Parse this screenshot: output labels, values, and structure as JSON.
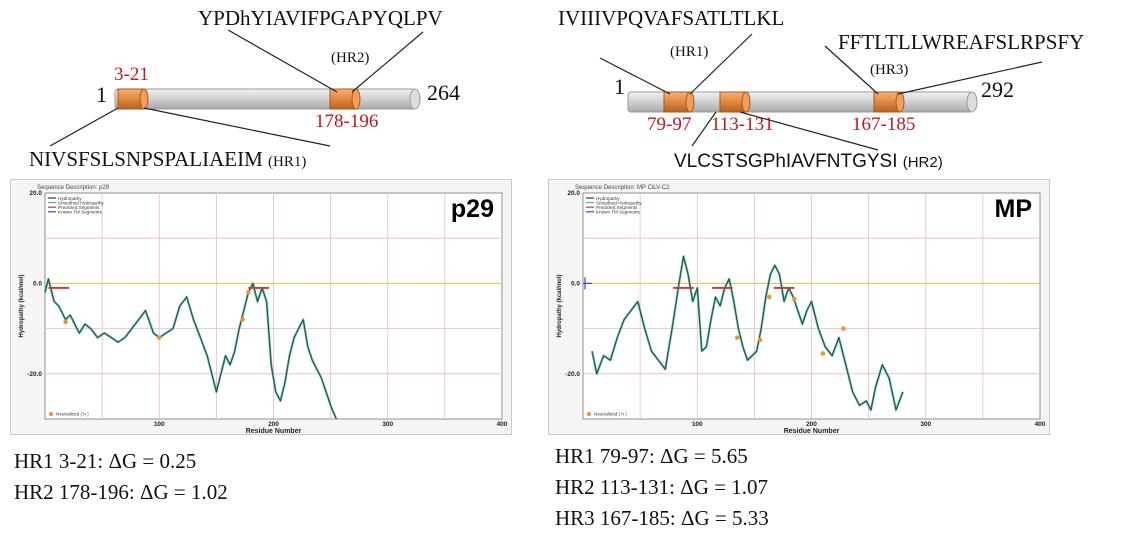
{
  "left_schematic": {
    "start": "1",
    "end": "264",
    "hr1": {
      "range": "3-21",
      "sequence": "NIVSFSLSNPSPALIAEIM",
      "label": "(HR1)"
    },
    "hr2": {
      "range": "178-196",
      "sequence": "YPDhYIAVIFPGAPYQLPV",
      "label": "(HR2)"
    }
  },
  "right_schematic": {
    "start": "1",
    "end": "292",
    "hr1": {
      "range": "79-97",
      "sequence": "IVIIIVPQVAFSATLTLKL",
      "label": "(HR1)"
    },
    "hr2": {
      "range": "113-131",
      "sequence": "VLCSTSGPhIAVFNTGYSI",
      "label": "(HR2)"
    },
    "hr3": {
      "range": "167-185",
      "sequence": "FFTLTLLWREAFSLRPSFY",
      "label": "(HR3)"
    }
  },
  "colors": {
    "hydropathy": "#2e3b33",
    "smoothed": "#49b7a8",
    "predicted": "#e03030",
    "known": "#3a3aff",
    "zero_line": "#e8c23a",
    "grid": "#f1b8b8",
    "neutralized": "#f5922a",
    "segment": "#e0873e"
  },
  "chart_data": [
    {
      "type": "line",
      "panel_label": "p29",
      "header": "Sequence Description: p29",
      "xlabel": "Residue Number",
      "ylabel": "Hydropathy (kcal/mol)",
      "xlim": [
        0,
        400
      ],
      "ylim": [
        -30,
        20
      ],
      "x_ticks": [
        "100",
        "200",
        "300",
        "400"
      ],
      "y_ticks": [
        "20.0",
        "0.0",
        "-20.0"
      ],
      "legend": [
        "Hydropathy",
        "Smoothed Hydropathy",
        "Predicted Segments",
        "Known TM Segments"
      ],
      "neutralized_label": "Neutralized ( h )",
      "series": [
        {
          "name": "Hydropathy",
          "x": [
            0,
            3,
            8,
            12,
            18,
            22,
            26,
            30,
            35,
            40,
            46,
            52,
            58,
            64,
            70,
            76,
            82,
            88,
            95,
            100,
            106,
            112,
            118,
            124,
            130,
            136,
            142,
            146,
            150,
            154,
            158,
            162,
            166,
            170,
            174,
            178,
            182,
            186,
            190,
            194,
            198,
            202,
            206,
            210,
            214,
            218,
            222,
            226,
            230,
            234,
            238,
            242,
            246,
            250,
            255
          ],
          "y": [
            -2,
            1,
            -4,
            -5,
            -8,
            -7,
            -9,
            -11,
            -9,
            -10,
            -12,
            -11,
            -12,
            -13,
            -12,
            -10,
            -8,
            -6,
            -11,
            -12,
            -11,
            -10,
            -5,
            -3,
            -8,
            -12,
            -16,
            -20,
            -24,
            -20,
            -16,
            -18,
            -15,
            -10,
            -6,
            -2,
            0,
            -4,
            -1,
            -4,
            -18,
            -24,
            -26,
            -22,
            -16,
            -12,
            -10,
            -8,
            -14,
            -17,
            -19,
            -21,
            -24,
            -27,
            -30
          ]
        }
      ],
      "predicted_segments": [
        [
          3,
          21
        ],
        [
          178,
          196
        ]
      ],
      "neutralized_points": [
        {
          "x": 18,
          "y": -8.5
        },
        {
          "x": 100,
          "y": -12
        },
        {
          "x": 173,
          "y": -8
        },
        {
          "x": 178,
          "y": -2
        }
      ]
    },
    {
      "type": "line",
      "panel_label": "MP",
      "header": "Sequence Description: MP CiLV-C2",
      "xlabel": "Residue Number",
      "ylabel": "Hydropathy (kcal/mol)",
      "xlim": [
        0,
        400
      ],
      "ylim": [
        -30,
        20
      ],
      "x_ticks": [
        "100",
        "200",
        "300",
        "400"
      ],
      "y_ticks": [
        "20.0",
        "0.0",
        "-20.0"
      ],
      "legend": [
        "Hydropathy",
        "Smoothed Hydropathy",
        "Predicted Segments",
        "Known TM Segments"
      ],
      "neutralized_label": "Neutralized ( h )",
      "series": [
        {
          "name": "Hydropathy",
          "x": [
            8,
            12,
            18,
            24,
            30,
            36,
            42,
            48,
            54,
            60,
            66,
            72,
            78,
            84,
            88,
            92,
            96,
            100,
            104,
            108,
            112,
            116,
            120,
            124,
            128,
            132,
            136,
            140,
            144,
            148,
            152,
            156,
            160,
            164,
            168,
            172,
            176,
            180,
            184,
            188,
            192,
            196,
            200,
            206,
            212,
            218,
            224,
            230,
            236,
            242,
            248,
            252,
            256,
            262,
            268,
            274,
            280
          ],
          "y": [
            -15,
            -20,
            -16,
            -17,
            -12,
            -8,
            -6,
            -4,
            -10,
            -15,
            -17,
            -19,
            -10,
            0,
            6,
            2,
            -4,
            -1,
            -15,
            -14,
            -8,
            -3,
            -5,
            -1,
            1,
            -4,
            -10,
            -14,
            -17,
            -16,
            -15,
            -10,
            -3,
            2,
            4,
            2,
            -4,
            -1,
            -3,
            -6,
            -9,
            -6,
            -4,
            -10,
            -14,
            -16,
            -12,
            -18,
            -24,
            -27,
            -26,
            -28,
            -23,
            -18,
            -21,
            -28,
            -24
          ]
        }
      ],
      "predicted_segments": [
        [
          79,
          97
        ],
        [
          113,
          131
        ],
        [
          167,
          185
        ]
      ],
      "known_segments": [
        [
          0,
          0
        ]
      ],
      "neutralized_points": [
        {
          "x": 135,
          "y": -12
        },
        {
          "x": 155,
          "y": -12.5
        },
        {
          "x": 163,
          "y": -3
        },
        {
          "x": 185,
          "y": -3.5
        },
        {
          "x": 210,
          "y": -15.5
        },
        {
          "x": 228,
          "y": -10
        }
      ]
    }
  ],
  "delta_g_left": [
    "HR1 3-21: ΔG = 0.25",
    "HR2 178-196: ΔG = 1.02"
  ],
  "delta_g_right": [
    "HR1 79-97: ΔG = 5.65",
    "HR2 113-131: ΔG = 1.07",
    "HR3 167-185: ΔG = 5.33"
  ]
}
